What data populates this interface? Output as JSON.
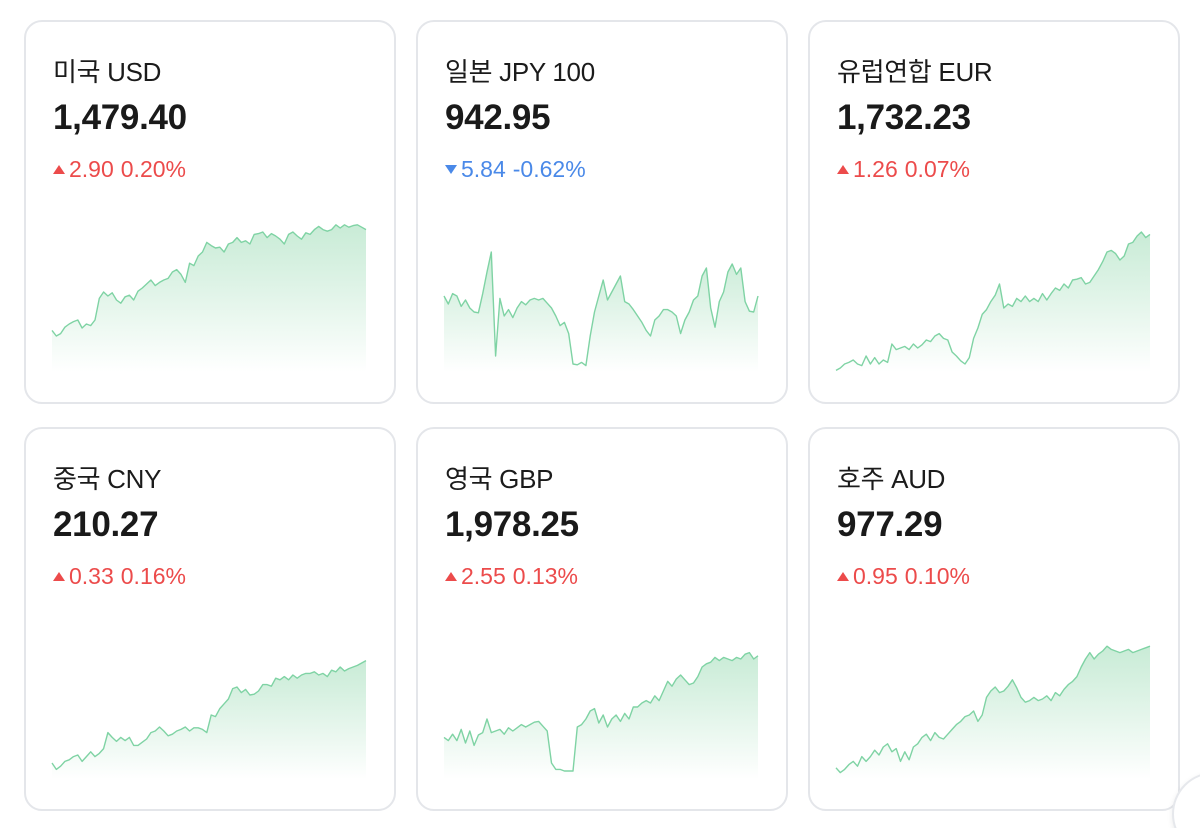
{
  "cards": [
    {
      "name": "미국 USD",
      "price": "1,479.40",
      "direction": "up",
      "change": "2.90",
      "change_pct": "0.20%",
      "series": [
        52,
        45,
        48,
        56,
        60,
        63,
        65,
        55,
        60,
        58,
        65,
        92,
        100,
        95,
        99,
        90,
        86,
        94,
        96,
        90,
        101,
        105,
        110,
        115,
        108,
        112,
        115,
        117,
        125,
        128,
        122,
        112,
        136,
        133,
        145,
        150,
        162,
        158,
        155,
        156,
        150,
        160,
        162,
        168,
        162,
        164,
        160,
        172,
        173,
        175,
        168,
        173,
        170,
        166,
        160,
        172,
        175,
        170,
        166,
        174,
        172,
        178,
        182,
        178,
        176,
        178,
        184,
        180,
        184,
        181,
        183,
        184,
        181,
        178
      ]
    },
    {
      "name": "일본 JPY 100",
      "price": "942.95",
      "direction": "down",
      "change": "5.84",
      "change_pct": "-0.62%",
      "series": [
        95,
        85,
        98,
        95,
        82,
        90,
        80,
        75,
        74,
        98,
        125,
        150,
        20,
        92,
        70,
        78,
        68,
        80,
        88,
        84,
        90,
        92,
        90,
        92,
        86,
        80,
        70,
        58,
        62,
        48,
        10,
        9,
        12,
        8,
        45,
        75,
        95,
        115,
        90,
        100,
        110,
        120,
        88,
        85,
        78,
        70,
        62,
        52,
        45,
        65,
        70,
        78,
        78,
        75,
        70,
        48,
        65,
        75,
        90,
        95,
        120,
        130,
        80,
        56,
        88,
        100,
        125,
        135,
        122,
        130,
        88,
        76,
        75,
        95
      ]
    },
    {
      "name": "유럽연합 EUR",
      "price": "1,732.23",
      "direction": "up",
      "change": "1.26",
      "change_pct": "0.07%",
      "series": [
        2,
        5,
        10,
        12,
        15,
        10,
        8,
        20,
        10,
        18,
        10,
        15,
        12,
        35,
        28,
        30,
        32,
        28,
        35,
        30,
        34,
        40,
        38,
        45,
        48,
        42,
        40,
        25,
        20,
        14,
        10,
        18,
        42,
        55,
        72,
        78,
        88,
        96,
        110,
        80,
        85,
        82,
        92,
        88,
        95,
        88,
        92,
        88,
        98,
        90,
        98,
        105,
        102,
        110,
        105,
        115,
        116,
        118,
        110,
        112,
        120,
        128,
        138,
        150,
        152,
        148,
        140,
        145,
        160,
        162,
        170,
        175,
        168,
        172
      ]
    },
    {
      "name": "중국 CNY",
      "price": "210.27",
      "direction": "up",
      "change": "0.33",
      "change_pct": "0.16%",
      "series": [
        20,
        12,
        16,
        22,
        24,
        28,
        30,
        22,
        28,
        34,
        28,
        32,
        38,
        58,
        52,
        47,
        52,
        48,
        52,
        42,
        42,
        46,
        50,
        58,
        60,
        65,
        60,
        54,
        56,
        60,
        62,
        65,
        60,
        64,
        64,
        62,
        58,
        80,
        78,
        88,
        94,
        100,
        113,
        115,
        108,
        112,
        105,
        106,
        110,
        118,
        118,
        116,
        126,
        124,
        128,
        124,
        130,
        126,
        130,
        132,
        132,
        134,
        130,
        132,
        128,
        136,
        134,
        140,
        135,
        138,
        140,
        142,
        145,
        148
      ]
    },
    {
      "name": "영국 GBP",
      "price": "1,978.25",
      "direction": "up",
      "change": "2.55",
      "change_pct": "0.13%",
      "series": [
        52,
        48,
        56,
        48,
        62,
        45,
        60,
        42,
        55,
        58,
        75,
        58,
        60,
        62,
        56,
        64,
        60,
        64,
        68,
        65,
        68,
        71,
        72,
        66,
        60,
        20,
        12,
        12,
        10,
        10,
        10,
        65,
        68,
        75,
        85,
        88,
        70,
        80,
        65,
        75,
        80,
        72,
        82,
        75,
        90,
        90,
        95,
        98,
        95,
        104,
        98,
        110,
        122,
        116,
        125,
        130,
        124,
        118,
        120,
        128,
        140,
        144,
        146,
        152,
        148,
        152,
        150,
        148,
        152,
        150,
        156,
        158,
        150,
        154
      ]
    },
    {
      "name": "호주 AUD",
      "price": "977.29",
      "direction": "up",
      "change": "0.95",
      "change_pct": "0.10%",
      "series": [
        14,
        8,
        12,
        18,
        22,
        16,
        28,
        22,
        28,
        36,
        30,
        40,
        44,
        34,
        38,
        22,
        34,
        24,
        40,
        44,
        52,
        56,
        48,
        58,
        52,
        50,
        56,
        62,
        68,
        72,
        78,
        80,
        85,
        72,
        80,
        102,
        110,
        115,
        108,
        110,
        116,
        124,
        114,
        102,
        96,
        98,
        102,
        98,
        100,
        104,
        98,
        108,
        104,
        112,
        118,
        122,
        128,
        140,
        150,
        158,
        150,
        156,
        160,
        166,
        162,
        160,
        158,
        160,
        162,
        158,
        160,
        162,
        164,
        166
      ]
    }
  ],
  "colors": {
    "card_border": "#e4e6ea",
    "up": "#ec4b4b",
    "down": "#4a89e8",
    "line": "#7fd3a4"
  }
}
